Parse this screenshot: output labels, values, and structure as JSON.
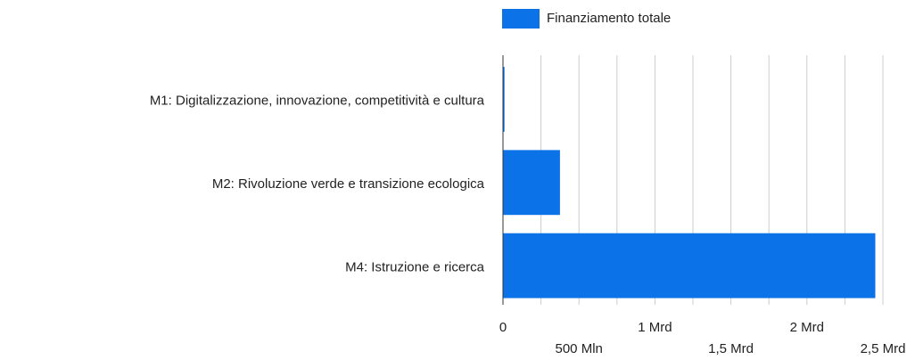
{
  "chart_data": {
    "type": "barh",
    "categories": [
      "M1: Digitalizzazione, innovazione, competitività e cultura",
      "M2: Rivoluzione verde e transizione ecologica",
      "M4: Istruzione e ricerca"
    ],
    "series": [
      {
        "name": "Finanziamento totale",
        "color": "#0b72e7",
        "values": [
          10000000,
          375000000,
          2450000000
        ]
      }
    ],
    "xlim": [
      0,
      2500000000
    ],
    "xticks": [
      0,
      {
        "value": 500000000,
        "label": "500 Mln"
      },
      {
        "value": 1000000000,
        "label": "1 Mrd"
      },
      {
        "value": 1500000000,
        "label": "1,5 Mrd"
      },
      {
        "value": 2000000000,
        "label": "2 Mrd"
      },
      {
        "value": 2500000000,
        "label": "2,5 Mrd"
      }
    ],
    "xminor_ticks": [
      250000000,
      750000000,
      1250000000,
      1750000000,
      2250000000
    ],
    "grid": true,
    "legend": "top"
  }
}
